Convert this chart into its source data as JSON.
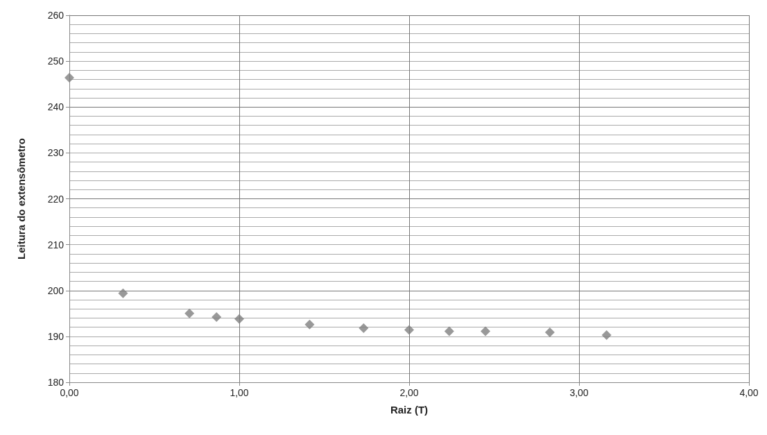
{
  "chart_data": {
    "type": "scatter",
    "xlabel": "Raiz (T)",
    "ylabel": "Leitura do extensômetro",
    "x": [
      0,
      0.316,
      0.707,
      0.866,
      1.0,
      1.414,
      1.732,
      2.0,
      2.236,
      2.449,
      2.828,
      3.162
    ],
    "values": [
      246.4,
      199.4,
      195.0,
      194.2,
      193.8,
      192.6,
      191.8,
      191.4,
      191.1,
      191.1,
      190.9,
      190.3
    ],
    "color": "#7f7f7f",
    "marker": "diamond",
    "xlim": [
      0,
      4
    ],
    "xticks": [
      {
        "value": 0,
        "label": "0,00"
      },
      {
        "value": 1,
        "label": "1,00"
      },
      {
        "value": 2,
        "label": "2,00"
      },
      {
        "value": 3,
        "label": "3,00"
      },
      {
        "value": 4,
        "label": "4,00"
      }
    ],
    "ylim": [
      180,
      260
    ],
    "yticks": [
      180,
      190,
      200,
      210,
      220,
      230,
      240,
      250,
      260
    ],
    "grid": true
  }
}
